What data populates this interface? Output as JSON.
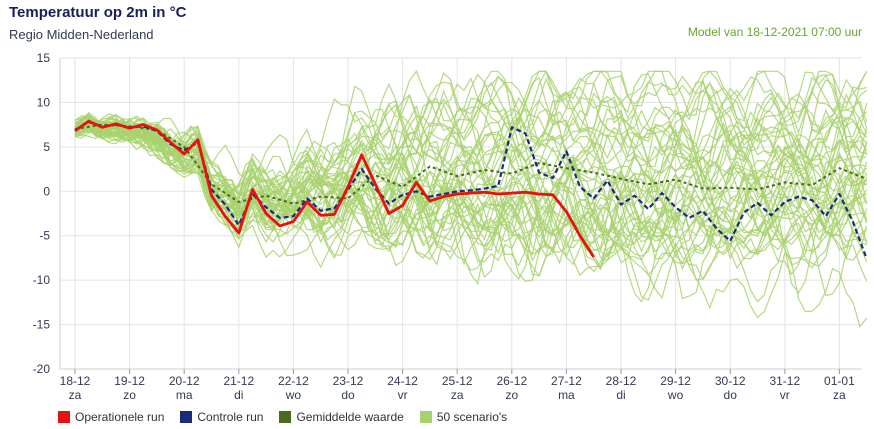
{
  "header": {
    "title": "Temperatuur op 2m in °C",
    "subtitle": "Regio Midden-Nederland",
    "model_info": "Model van 18-12-2021 07:00 uur"
  },
  "legend": [
    {
      "label": "Operationele run",
      "color": "#e8110f"
    },
    {
      "label": "Controle run",
      "color": "#1c2a7a"
    },
    {
      "label": "Gemiddelde waarde",
      "color": "#4a6b1e"
    },
    {
      "label": "50 scenario's",
      "color": "#a8d26e"
    }
  ],
  "chart_data": {
    "type": "line",
    "ylim": [
      -20,
      15
    ],
    "yticks": [
      15,
      10,
      5,
      0,
      -5,
      -10,
      -15,
      -20
    ],
    "x_unit": "days since 18-12",
    "xlim": [
      0,
      14.5
    ],
    "xticks": [
      {
        "date": "18-12",
        "day": "za"
      },
      {
        "date": "19-12",
        "day": "zo"
      },
      {
        "date": "20-12",
        "day": "ma"
      },
      {
        "date": "21-12",
        "day": "di"
      },
      {
        "date": "22-12",
        "day": "wo"
      },
      {
        "date": "23-12",
        "day": "do"
      },
      {
        "date": "24-12",
        "day": "vr"
      },
      {
        "date": "25-12",
        "day": "za"
      },
      {
        "date": "26-12",
        "day": "zo"
      },
      {
        "date": "27-12",
        "day": "ma"
      },
      {
        "date": "28-12",
        "day": "di"
      },
      {
        "date": "29-12",
        "day": "wo"
      },
      {
        "date": "30-12",
        "day": "do"
      },
      {
        "date": "31-12",
        "day": "vr"
      },
      {
        "date": "01-01",
        "day": "za"
      }
    ],
    "grid": true,
    "series": [
      {
        "name": "Operationele run",
        "color": "#e8110f",
        "x": [
          0.0,
          0.25,
          0.5,
          0.75,
          1.0,
          1.25,
          1.5,
          1.75,
          2.0,
          2.25,
          2.5,
          2.75,
          3.0,
          3.25,
          3.5,
          3.75,
          4.0,
          4.25,
          4.5,
          4.75,
          5.0,
          5.25,
          5.5,
          5.75,
          6.0,
          6.25,
          6.5,
          6.75,
          7.0,
          7.25,
          7.5,
          7.75,
          8.0,
          8.25,
          8.5,
          8.75,
          9.0,
          9.25,
          9.5
        ],
        "values": [
          6.8,
          7.9,
          7.2,
          7.6,
          7.1,
          7.5,
          6.9,
          5.5,
          4.2,
          5.8,
          -0.5,
          -2.8,
          -4.7,
          0.2,
          -2.5,
          -3.9,
          -3.4,
          -1.2,
          -2.7,
          -2.6,
          0.5,
          4.1,
          0.8,
          -2.5,
          -1.6,
          1.0,
          -1.1,
          -0.6,
          -0.3,
          -0.2,
          -0.1,
          -0.3,
          -0.2,
          -0.1,
          -0.3,
          -0.4,
          -2.3,
          -5.0,
          -7.4
        ]
      },
      {
        "name": "Controle run",
        "color": "#1c2a7a",
        "x": [
          0.0,
          0.25,
          0.5,
          0.75,
          1.0,
          1.25,
          1.5,
          1.75,
          2.0,
          2.25,
          2.5,
          2.75,
          3.0,
          3.25,
          3.5,
          3.75,
          4.0,
          4.25,
          4.5,
          4.75,
          5.0,
          5.25,
          5.5,
          5.75,
          6.0,
          6.25,
          6.5,
          6.75,
          7.0,
          7.25,
          7.5,
          7.75,
          8.0,
          8.25,
          8.5,
          8.75,
          9.0,
          9.25,
          9.5,
          9.75,
          10.0,
          10.25,
          10.5,
          10.75,
          11.0,
          11.25,
          11.5,
          11.75,
          12.0,
          12.25,
          12.5,
          12.75,
          13.0,
          13.25,
          13.5,
          13.75,
          14.0,
          14.25,
          14.5
        ],
        "values": [
          6.9,
          7.8,
          7.3,
          7.5,
          7.2,
          7.3,
          6.8,
          5.3,
          4.6,
          5.5,
          0.2,
          -1.5,
          -3.8,
          -0.3,
          -1.8,
          -3.0,
          -2.8,
          -0.8,
          -2.2,
          -1.9,
          0.2,
          2.5,
          0.3,
          -1.4,
          -0.4,
          0.0,
          -0.6,
          -0.3,
          0.0,
          0.1,
          0.3,
          0.6,
          7.2,
          6.5,
          2.1,
          1.5,
          4.5,
          0.5,
          -0.8,
          1.2,
          -1.5,
          -0.5,
          -2.0,
          -0.2,
          -1.8,
          -3.0,
          -2.2,
          -4.2,
          -5.6,
          -2.4,
          -1.3,
          -2.7,
          -1.2,
          -0.6,
          -1.0,
          -2.8,
          -0.3,
          -3.5,
          -7.6
        ]
      },
      {
        "name": "Gemiddelde waarde",
        "color": "#4a6b1e",
        "x": [
          0.0,
          0.5,
          1.0,
          1.5,
          2.0,
          2.5,
          3.0,
          3.5,
          4.0,
          4.5,
          5.0,
          5.5,
          6.0,
          6.5,
          7.0,
          7.5,
          8.0,
          8.5,
          9.0,
          9.5,
          10.0,
          10.5,
          11.0,
          11.5,
          12.0,
          12.5,
          13.0,
          13.5,
          14.0,
          14.5
        ],
        "values": [
          7.0,
          7.5,
          7.3,
          6.9,
          5.0,
          0.8,
          -1.2,
          -0.5,
          -1.4,
          -0.6,
          -0.8,
          1.8,
          0.5,
          2.8,
          1.7,
          2.4,
          2.0,
          3.2,
          2.6,
          2.1,
          1.4,
          0.8,
          1.3,
          0.3,
          0.4,
          0.2,
          1.0,
          0.7,
          2.6,
          1.4
        ]
      }
    ],
    "ensemble": {
      "name": "50 scenario's",
      "color": "#a8d26e",
      "count": 50
    }
  }
}
